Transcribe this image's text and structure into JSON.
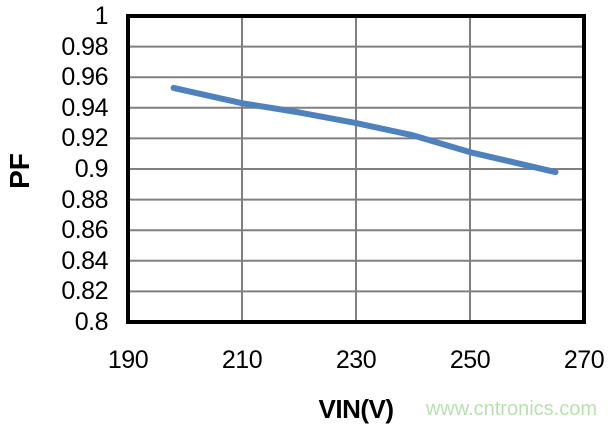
{
  "chart_data": {
    "type": "line",
    "title": "",
    "xlabel": "VIN(V)",
    "ylabel": "PF",
    "xlim": [
      190,
      270
    ],
    "ylim": [
      0.8,
      1.0
    ],
    "grid": true,
    "legend_position": "none",
    "x_ticks": {
      "values": [
        190,
        210,
        230,
        250,
        270
      ],
      "labels": [
        "190",
        "210",
        "230",
        "250",
        "270"
      ]
    },
    "y_ticks": {
      "values": [
        1,
        0.98,
        0.96,
        0.94,
        0.92,
        0.9,
        0.88,
        0.86,
        0.84,
        0.82,
        0.8
      ],
      "labels": [
        "1",
        "0.98",
        "0.96",
        "0.94",
        "0.92",
        "0.9",
        "0.88",
        "0.86",
        "0.84",
        "0.82",
        "0.8"
      ]
    },
    "series": [
      {
        "name": "PF",
        "color": "#4f81bd",
        "x": [
          198,
          210,
          220,
          230,
          240,
          250,
          265
        ],
        "y": [
          0.953,
          0.943,
          0.937,
          0.93,
          0.922,
          0.911,
          0.898
        ]
      }
    ],
    "colors": {
      "grid": "#808080",
      "border": "#000000",
      "text": "#000000"
    },
    "watermark": {
      "text": "www.cntronics.com",
      "color": "#b7e2af"
    }
  }
}
